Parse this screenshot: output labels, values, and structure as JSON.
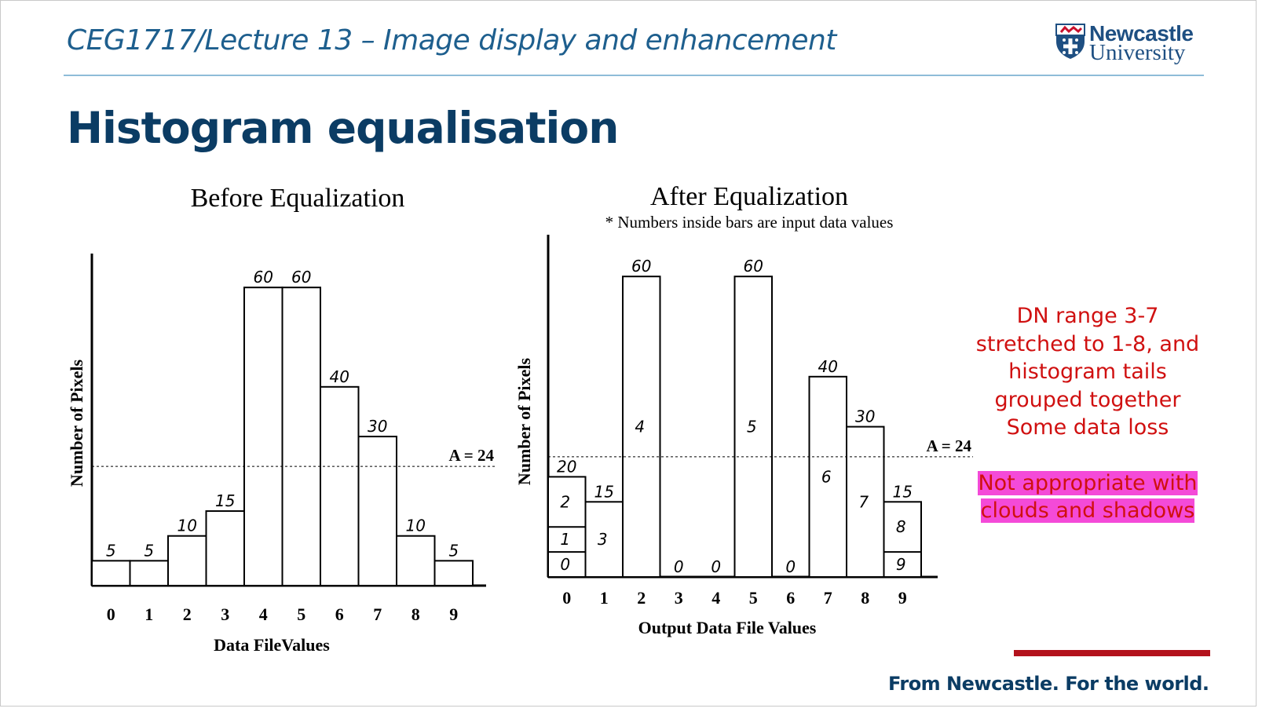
{
  "header": {
    "course_title": "CEG1717/Lecture 13 – Image display and enhancement",
    "logo_line1": "Newcastle",
    "logo_line2": "University"
  },
  "slide_title": "Histogram equalisation",
  "colors": {
    "title": "#0b3c64",
    "header_text": "#1e5f8e",
    "note_text": "#d01010",
    "highlight": "#f44ad8",
    "footer_bar": "#b3121c"
  },
  "chart_data": [
    {
      "type": "bar",
      "title": "Before Equalization",
      "xlabel": "Data FileValues",
      "ylabel": "Number of Pixels",
      "categories": [
        "0",
        "1",
        "2",
        "3",
        "4",
        "5",
        "6",
        "7",
        "8",
        "9"
      ],
      "values": [
        5,
        5,
        10,
        15,
        60,
        60,
        40,
        30,
        10,
        5
      ],
      "value_labels": [
        "5",
        "5",
        "10",
        "15",
        "60",
        "60",
        "40",
        "30",
        "10",
        "5"
      ],
      "ylim": [
        0,
        66
      ],
      "reference_line": {
        "value": 24,
        "label": "A = 24"
      },
      "grid": false
    },
    {
      "type": "bar",
      "title": "After Equalization",
      "subtitle": "* Numbers inside bars are input data values",
      "xlabel": "Output Data File Values",
      "ylabel": "Number of Pixels",
      "categories": [
        "0",
        "1",
        "2",
        "3",
        "4",
        "5",
        "6",
        "7",
        "8",
        "9"
      ],
      "values": [
        20,
        15,
        60,
        0,
        0,
        60,
        0,
        40,
        30,
        15
      ],
      "value_labels": [
        "20",
        "15",
        "60",
        "0",
        "0",
        "60",
        "0",
        "40",
        "30",
        "15"
      ],
      "segments": [
        [
          {
            "input": "0",
            "value": 5
          },
          {
            "input": "1",
            "value": 5
          },
          {
            "input": "2",
            "value": 10
          }
        ],
        [
          {
            "input": "3",
            "value": 15
          }
        ],
        [
          {
            "input": "4",
            "value": 60
          }
        ],
        [],
        [],
        [
          {
            "input": "5",
            "value": 60
          }
        ],
        [],
        [
          {
            "input": "6",
            "value": 40
          }
        ],
        [
          {
            "input": "7",
            "value": 30
          }
        ],
        [
          {
            "input": "9",
            "value": 5
          },
          {
            "input": "8",
            "value": 10
          }
        ]
      ],
      "ylim": [
        0,
        66
      ],
      "reference_line": {
        "value": 24,
        "label": "A = 24"
      },
      "grid": false
    }
  ],
  "note": {
    "lines": [
      "DN range 3-7",
      "stretched to 1-8, and",
      "histogram tails",
      "grouped together",
      "Some data loss"
    ],
    "highlight_lines": [
      "Not appropriate with",
      "clouds and shadows"
    ]
  },
  "footer": {
    "tagline": "From Newcastle. For the world."
  }
}
